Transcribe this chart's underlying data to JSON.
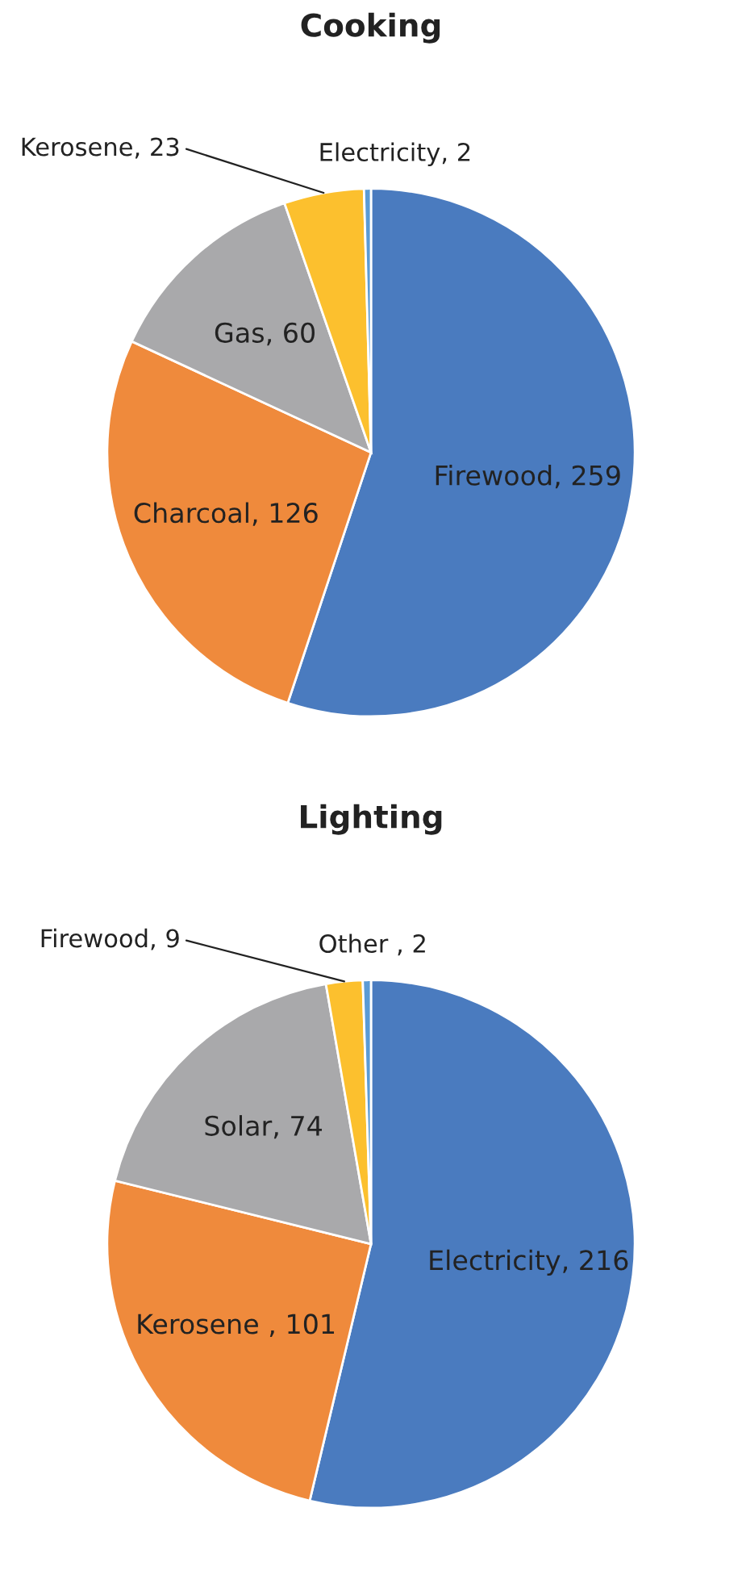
{
  "chart_data": [
    {
      "type": "pie",
      "title": "Cooking",
      "categories": [
        "Firewood",
        "Charcoal",
        "Gas",
        "Kerosene",
        "Electricity"
      ],
      "values": [
        259,
        126,
        60,
        23,
        2
      ],
      "colors": [
        "#4a7bbf",
        "#ef8a3c",
        "#a9a9ab",
        "#fcc02e",
        "#5b9bd5"
      ],
      "value_labels": [
        ", 259",
        ", 126",
        ", 60",
        ", 23",
        ", 2"
      ]
    },
    {
      "type": "pie",
      "title": "Lighting",
      "categories": [
        "Electricity",
        "Kerosene",
        "Solar",
        "Firewood",
        "Other"
      ],
      "values": [
        216,
        101,
        74,
        9,
        2
      ],
      "colors": [
        "#4a7bbf",
        "#ef8a3c",
        "#a9a9ab",
        "#fcc02e",
        "#5b9bd5"
      ],
      "value_labels": [
        ", 216",
        " , 101",
        ", 74",
        ", 9",
        " , 2"
      ]
    }
  ]
}
